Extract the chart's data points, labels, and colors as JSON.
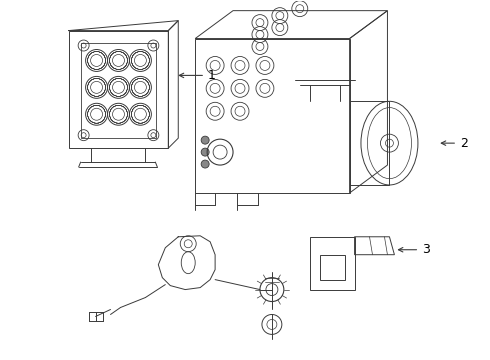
{
  "bg_color": "#ffffff",
  "line_color": "#3a3a3a",
  "lw": 0.7,
  "labels": [
    "1",
    "2",
    "3"
  ],
  "fig_w": 4.9,
  "fig_h": 3.6,
  "dpi": 100
}
